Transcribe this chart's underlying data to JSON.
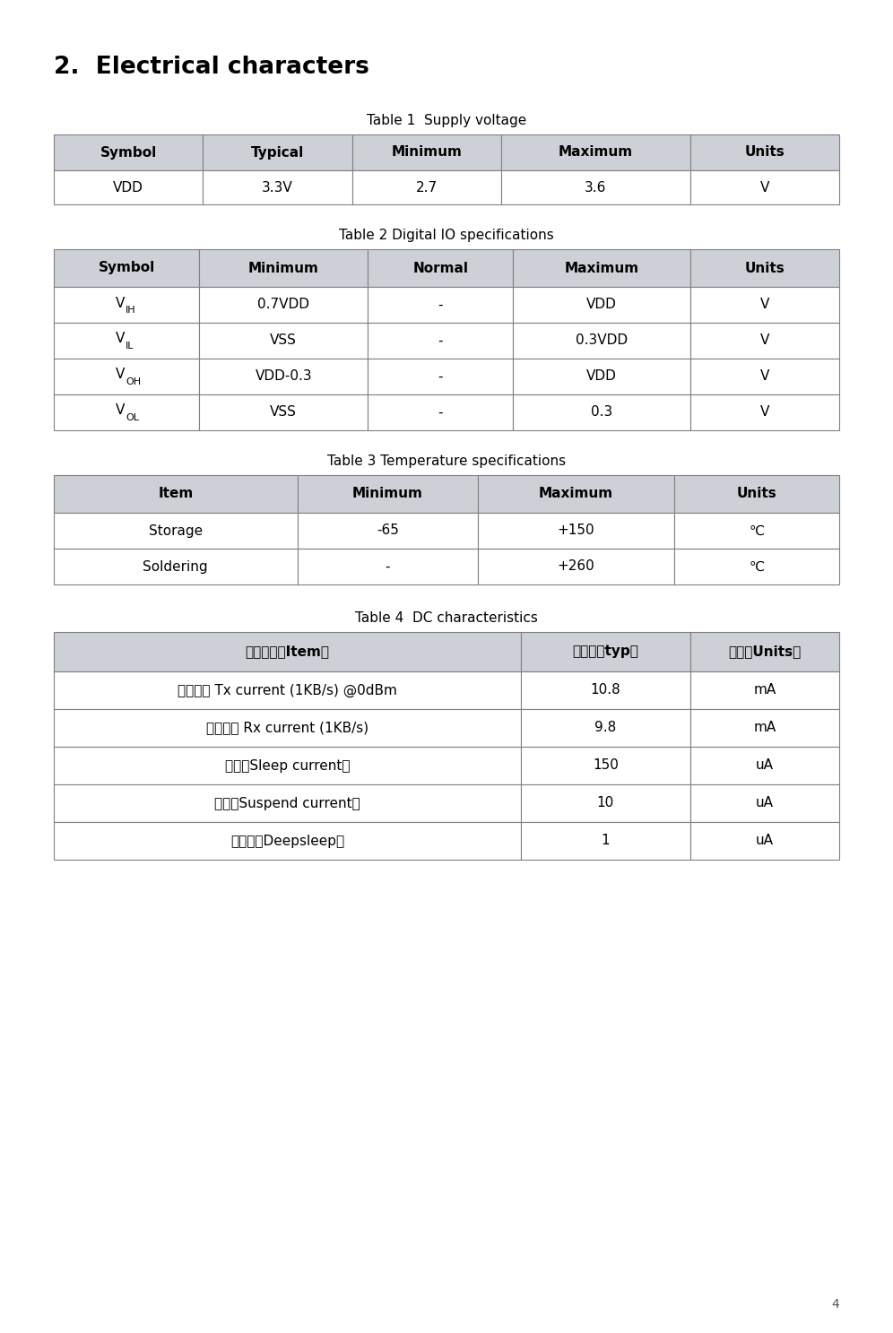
{
  "title": "2.  Electrical characters",
  "page_number": "4",
  "background_color": "#ffffff",
  "header_bg_color": "#cdd0d6",
  "table1": {
    "caption": "Table 1  Supply voltage",
    "headers": [
      "Symbol",
      "Typical",
      "Minimum",
      "Maximum",
      "Units"
    ],
    "rows": [
      [
        "VDD",
        "3.3V",
        "2.7",
        "3.6",
        "V"
      ]
    ]
  },
  "table2": {
    "caption": "Table 2 Digital IO specifications",
    "headers": [
      "Symbol",
      "Minimum",
      "Normal",
      "Maximum",
      "Units"
    ],
    "symbol_rows": [
      [
        "VIH",
        "0.7VDD",
        "-",
        "VDD",
        "V"
      ],
      [
        "VIL",
        "VSS",
        "-",
        "0.3VDD",
        "V"
      ],
      [
        "VOH",
        "VDD-0.3",
        "-",
        "VDD",
        "V"
      ],
      [
        "VOL",
        "VSS",
        "-",
        "0.3",
        "V"
      ]
    ],
    "subscripts": [
      "IH",
      "IL",
      "OH",
      "OL"
    ]
  },
  "table3": {
    "caption": "Table 3 Temperature specifications",
    "headers": [
      "Item",
      "Minimum",
      "Maximum",
      "Units"
    ],
    "rows": [
      [
        "Storage",
        "-65",
        "+150",
        "℃"
      ],
      [
        "Soldering",
        "-",
        "+260",
        "℃"
      ]
    ]
  },
  "table4": {
    "caption": "Table 4  DC characteristics",
    "headers": [
      "工作模式（Item）",
      "典型値（typ）",
      "单位（Units）"
    ],
    "rows": [
      [
        "发射模式 Tx current (1KB/s) @0dBm",
        "10.8",
        "mA"
      ],
      [
        "接收模式 Rx current (1KB/s)",
        "9.8",
        "mA"
      ],
      [
        "睡眠（Sleep current）",
        "150",
        "uA"
      ],
      [
        "挂起（Suspend current）",
        "10",
        "uA"
      ],
      [
        "深睡眠（Deepsleep）",
        "1",
        "uA"
      ]
    ]
  }
}
